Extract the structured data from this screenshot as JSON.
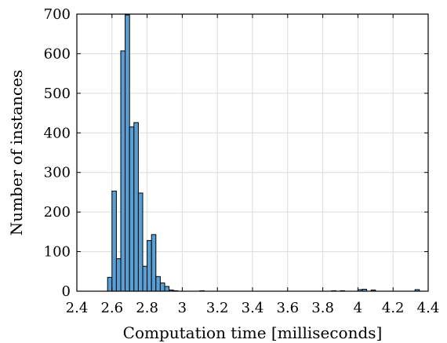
{
  "chart_data": {
    "type": "bar",
    "title": "",
    "xlabel": "Computation time [milliseconds]",
    "ylabel": "Number of instances",
    "xlim": [
      2.4,
      4.4
    ],
    "ylim": [
      0,
      700
    ],
    "grid": true,
    "xticks": [
      2.4,
      2.6,
      2.8,
      3,
      3.2,
      3.4,
      3.6,
      3.8,
      4,
      4.2,
      4.4
    ],
    "xtick_labels": [
      "2.4",
      "2.6",
      "2.8",
      "3",
      "3.2",
      "3.4",
      "3.6",
      "3.8",
      "4",
      "4.2",
      "4.4"
    ],
    "yticks": [
      0,
      100,
      200,
      300,
      400,
      500,
      600,
      700
    ],
    "ytick_labels": [
      "0",
      "100",
      "200",
      "300",
      "400",
      "500",
      "600",
      "700"
    ],
    "bin_width": 0.025,
    "bins": [
      {
        "x": 2.575,
        "value": 35
      },
      {
        "x": 2.6,
        "value": 253
      },
      {
        "x": 2.625,
        "value": 82
      },
      {
        "x": 2.65,
        "value": 607
      },
      {
        "x": 2.675,
        "value": 698
      },
      {
        "x": 2.7,
        "value": 415
      },
      {
        "x": 2.725,
        "value": 426
      },
      {
        "x": 2.75,
        "value": 248
      },
      {
        "x": 2.775,
        "value": 63
      },
      {
        "x": 2.8,
        "value": 128
      },
      {
        "x": 2.825,
        "value": 143
      },
      {
        "x": 2.85,
        "value": 37
      },
      {
        "x": 2.875,
        "value": 21
      },
      {
        "x": 2.9,
        "value": 12
      },
      {
        "x": 2.925,
        "value": 3
      },
      {
        "x": 2.95,
        "value": 1
      },
      {
        "x": 3.1,
        "value": 1
      },
      {
        "x": 3.85,
        "value": 1
      },
      {
        "x": 3.9,
        "value": 1
      },
      {
        "x": 4.0,
        "value": 4
      },
      {
        "x": 4.025,
        "value": 5
      },
      {
        "x": 4.075,
        "value": 3
      },
      {
        "x": 4.325,
        "value": 4
      }
    ]
  },
  "colors": {
    "bar_fill": "#5a9fd4",
    "bar_edge": "#000000",
    "grid": "#dcdcdc"
  }
}
